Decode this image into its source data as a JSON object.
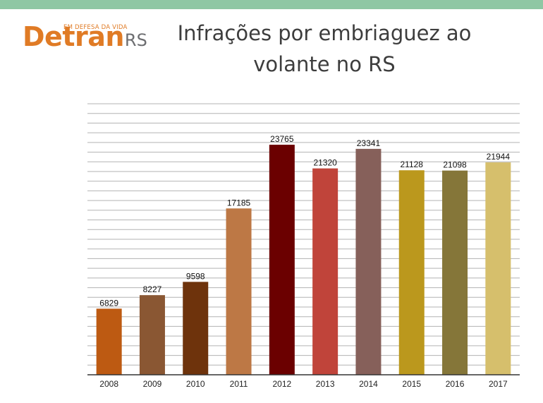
{
  "header": {
    "logo_tagline": "EM DEFESA DA VIDA",
    "logo_main": "Detran",
    "logo_suffix": "RS",
    "title_line1": "Infrações por embriaguez ao",
    "title_line2": "volante no RS"
  },
  "colors": {
    "top_band": "#8fc7a4",
    "logo_orange": "#e07b25",
    "logo_gray": "#6d6e71"
  },
  "chart_data": {
    "type": "bar",
    "title": "Infrações por embriaguez ao volante no RS",
    "categories": [
      "2008",
      "2009",
      "2010",
      "2011",
      "2012",
      "2013",
      "2014",
      "2015",
      "2016",
      "2017"
    ],
    "values": [
      6829,
      8227,
      9598,
      17185,
      23765,
      21320,
      23341,
      21128,
      21098,
      21944
    ],
    "bar_colors": [
      "#bd5a12",
      "#8a5733",
      "#6e330c",
      "#bd7845",
      "#6b0000",
      "#c0443a",
      "#86605a",
      "#bb981d",
      "#857639",
      "#d6bf6c"
    ],
    "ylim": [
      0,
      28000
    ],
    "grid": true,
    "y_tick_labels_shown": false,
    "legend": "none",
    "xlabel": "",
    "ylabel": ""
  }
}
